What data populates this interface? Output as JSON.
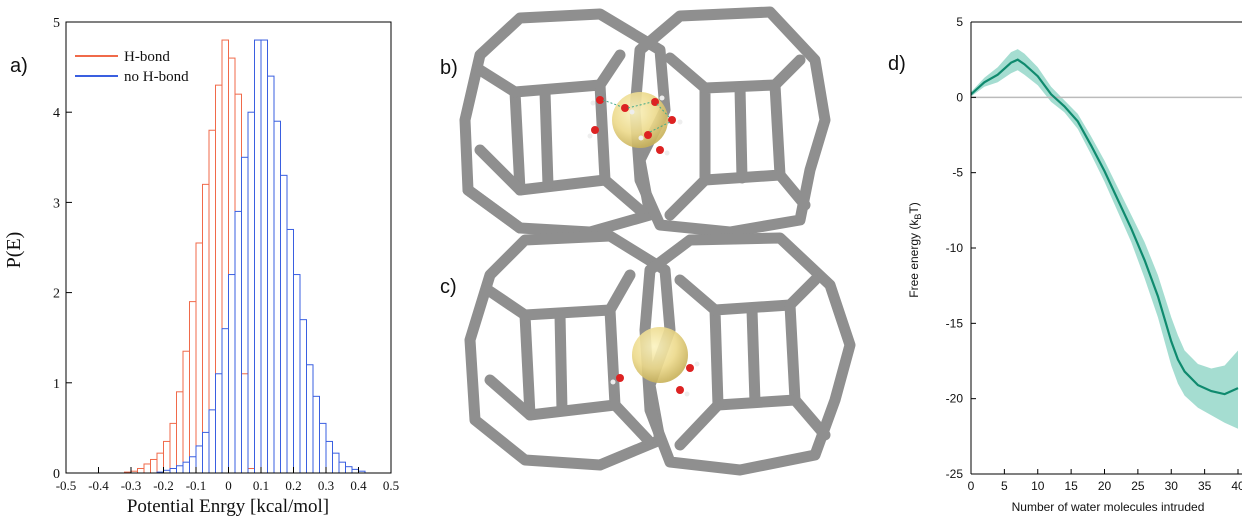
{
  "panels": {
    "a": "a)",
    "b": "b)",
    "c": "c)",
    "d": "d)"
  },
  "colors": {
    "hbond": "#f06a4a",
    "nohbond": "#3a5fe0",
    "line": "#0f8a6e",
    "band": "#7fcfbe",
    "cage": "#9a9a9a",
    "sphere": "#e8d77a"
  },
  "chart_data": [
    {
      "type": "bar",
      "panel": "a)",
      "xlabel": "Potential Enrgy [kcal/mol]",
      "ylabel": "P(E)",
      "xlim": [
        -0.5,
        0.5
      ],
      "ylim": [
        0,
        5
      ],
      "xticks": [
        "-0.5",
        "-0.4",
        "-0.3",
        "-0.2",
        "-0.1",
        "0",
        "0.1",
        "0.2",
        "0.3",
        "0.4",
        "0.5"
      ],
      "yticks": [
        "0",
        "1",
        "2",
        "3",
        "4",
        "5"
      ],
      "legend_position": "top-left",
      "bin_width": 0.02,
      "series": [
        {
          "name": "H-bond",
          "bin_centers": [
            -0.31,
            -0.29,
            -0.27,
            -0.25,
            -0.23,
            -0.21,
            -0.19,
            -0.17,
            -0.15,
            -0.13,
            -0.11,
            -0.09,
            -0.07,
            -0.05,
            -0.03,
            -0.01,
            0.01,
            0.03,
            0.05,
            0.07
          ],
          "values": [
            0.01,
            0.02,
            0.05,
            0.1,
            0.15,
            0.22,
            0.35,
            0.55,
            0.9,
            1.35,
            1.9,
            2.55,
            3.2,
            3.8,
            4.3,
            4.8,
            4.6,
            4.2,
            1.1,
            0.05
          ]
        },
        {
          "name": "no H-bond",
          "bin_centers": [
            -0.21,
            -0.19,
            -0.17,
            -0.15,
            -0.13,
            -0.11,
            -0.09,
            -0.07,
            -0.05,
            -0.03,
            -0.01,
            0.01,
            0.03,
            0.05,
            0.07,
            0.09,
            0.11,
            0.13,
            0.15,
            0.17,
            0.19,
            0.21,
            0.23,
            0.25,
            0.27,
            0.29,
            0.31,
            0.33,
            0.35,
            0.37,
            0.39,
            0.41
          ],
          "values": [
            0.01,
            0.03,
            0.05,
            0.08,
            0.12,
            0.18,
            0.3,
            0.45,
            0.7,
            1.1,
            1.6,
            2.2,
            2.9,
            3.5,
            4.0,
            4.8,
            4.8,
            4.4,
            3.9,
            3.3,
            2.7,
            2.2,
            1.7,
            1.2,
            0.85,
            0.55,
            0.35,
            0.22,
            0.12,
            0.07,
            0.04,
            0.02
          ]
        }
      ]
    },
    {
      "type": "line",
      "panel": "d)",
      "xlabel": "Number of water molecules intruded",
      "ylabel": "Free energy (k",
      "ylabel_sub": "B",
      "ylabel_tail": "T)",
      "xlim": [
        0,
        40
      ],
      "ylim": [
        -25,
        5
      ],
      "xticks": [
        "0",
        "5",
        "10",
        "15",
        "20",
        "25",
        "30",
        "35",
        "40"
      ],
      "yticks": [
        "5",
        "0",
        "-5",
        "-10",
        "-15",
        "-20",
        "-25"
      ],
      "reference_line_y": 0,
      "x": [
        0,
        2,
        4,
        6,
        7,
        8,
        10,
        12,
        14,
        16,
        18,
        20,
        22,
        24,
        26,
        28,
        30,
        31,
        32,
        34,
        36,
        38,
        40
      ],
      "y": [
        0.2,
        1.0,
        1.5,
        2.3,
        2.5,
        2.2,
        1.4,
        0.2,
        -0.6,
        -1.6,
        -3.2,
        -4.9,
        -6.8,
        -8.7,
        -10.8,
        -13.2,
        -16.2,
        -17.4,
        -18.2,
        -19.1,
        -19.5,
        -19.7,
        -19.3
      ],
      "band_upper": [
        0.35,
        1.3,
        2.0,
        3.0,
        3.2,
        2.9,
        2.0,
        0.7,
        -0.2,
        -1.1,
        -2.6,
        -4.2,
        -6.0,
        -7.8,
        -9.6,
        -11.8,
        -14.6,
        -15.8,
        -16.8,
        -17.7,
        -18.0,
        -17.8,
        -16.8
      ],
      "band_lower": [
        0.05,
        0.7,
        1.0,
        1.6,
        1.8,
        1.5,
        0.8,
        -0.3,
        -1.0,
        -2.1,
        -3.8,
        -5.6,
        -7.6,
        -9.6,
        -12.0,
        -14.6,
        -17.8,
        -19.0,
        -19.8,
        -20.6,
        -21.1,
        -21.6,
        -22.0
      ]
    }
  ]
}
